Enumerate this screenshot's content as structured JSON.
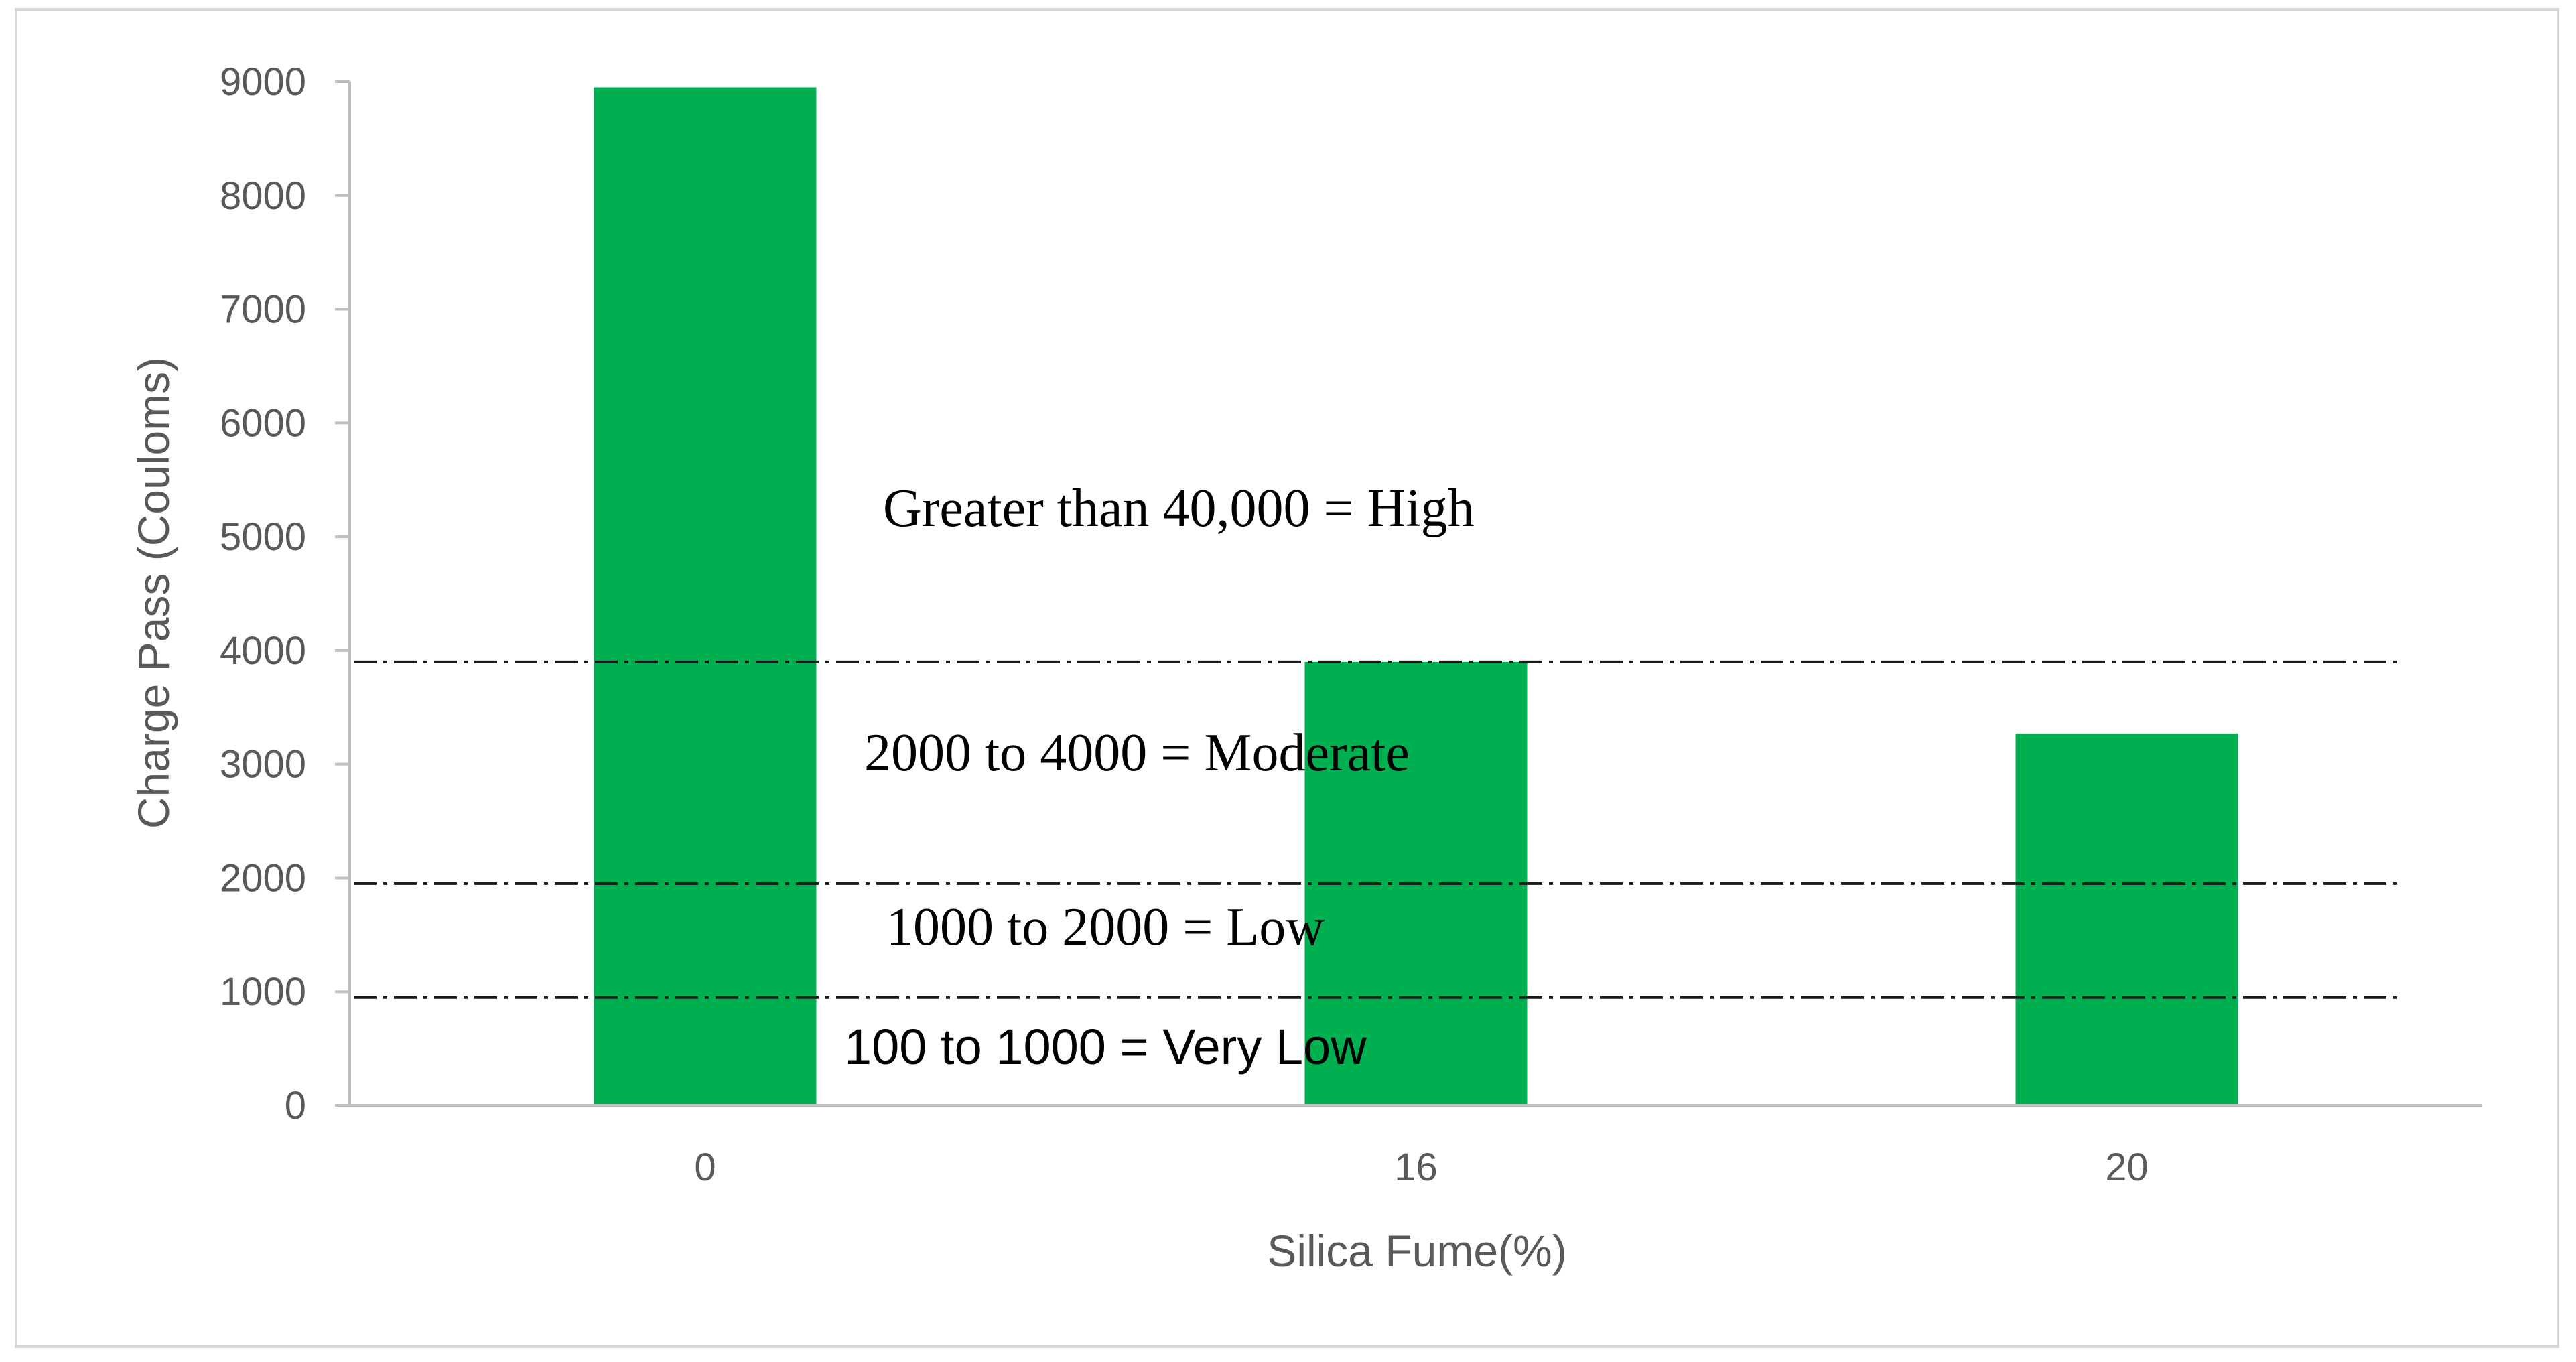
{
  "chart_data": {
    "type": "bar",
    "categories": [
      "0",
      "16",
      "20"
    ],
    "values": [
      8950,
      3900,
      3270
    ],
    "xlabel": "Silica Fume(%)",
    "ylabel": "Charge Pass (Couloms)",
    "ylim": [
      0,
      9000
    ],
    "yticks": [
      "0",
      "1000",
      "2000",
      "3000",
      "4000",
      "5000",
      "6000",
      "7000",
      "8000",
      "9000"
    ],
    "bar_color": "#00b050",
    "grid": false,
    "reference_lines": [
      3900,
      1950,
      950
    ],
    "annotations": [
      "Greater than 40,000 = High",
      "2000 to 4000 = Moderate",
      "1000 to 2000 = Low",
      "100 to 1000 = Very Low"
    ]
  }
}
